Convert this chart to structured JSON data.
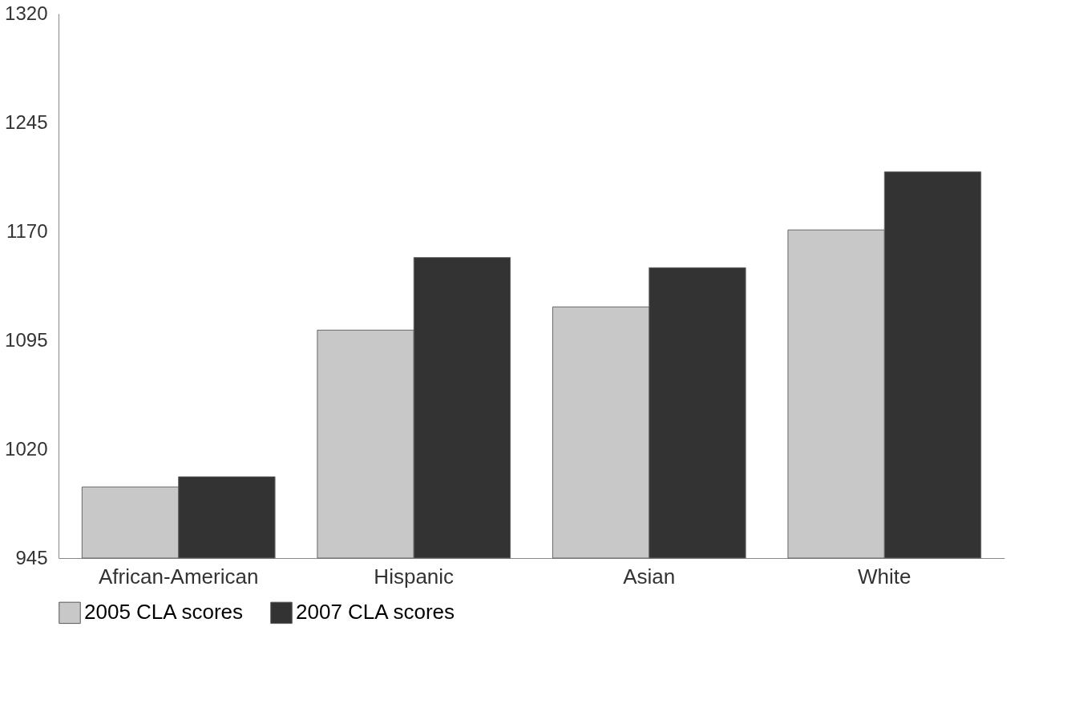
{
  "chart_data": {
    "type": "bar",
    "categories": [
      "African-American",
      "Hispanic",
      "Asian",
      "White"
    ],
    "series": [
      {
        "name": "2005 CLA scores",
        "color": "#c8c8c8",
        "values": [
          994,
          1102,
          1118,
          1171
        ]
      },
      {
        "name": "2007 CLA scores",
        "color": "#333333",
        "values": [
          1001,
          1152,
          1145,
          1211
        ]
      }
    ],
    "ylim": [
      945,
      1320
    ],
    "yticks": [
      945,
      1020,
      1095,
      1170,
      1245,
      1320
    ],
    "grid": false,
    "legend": "bottom"
  }
}
